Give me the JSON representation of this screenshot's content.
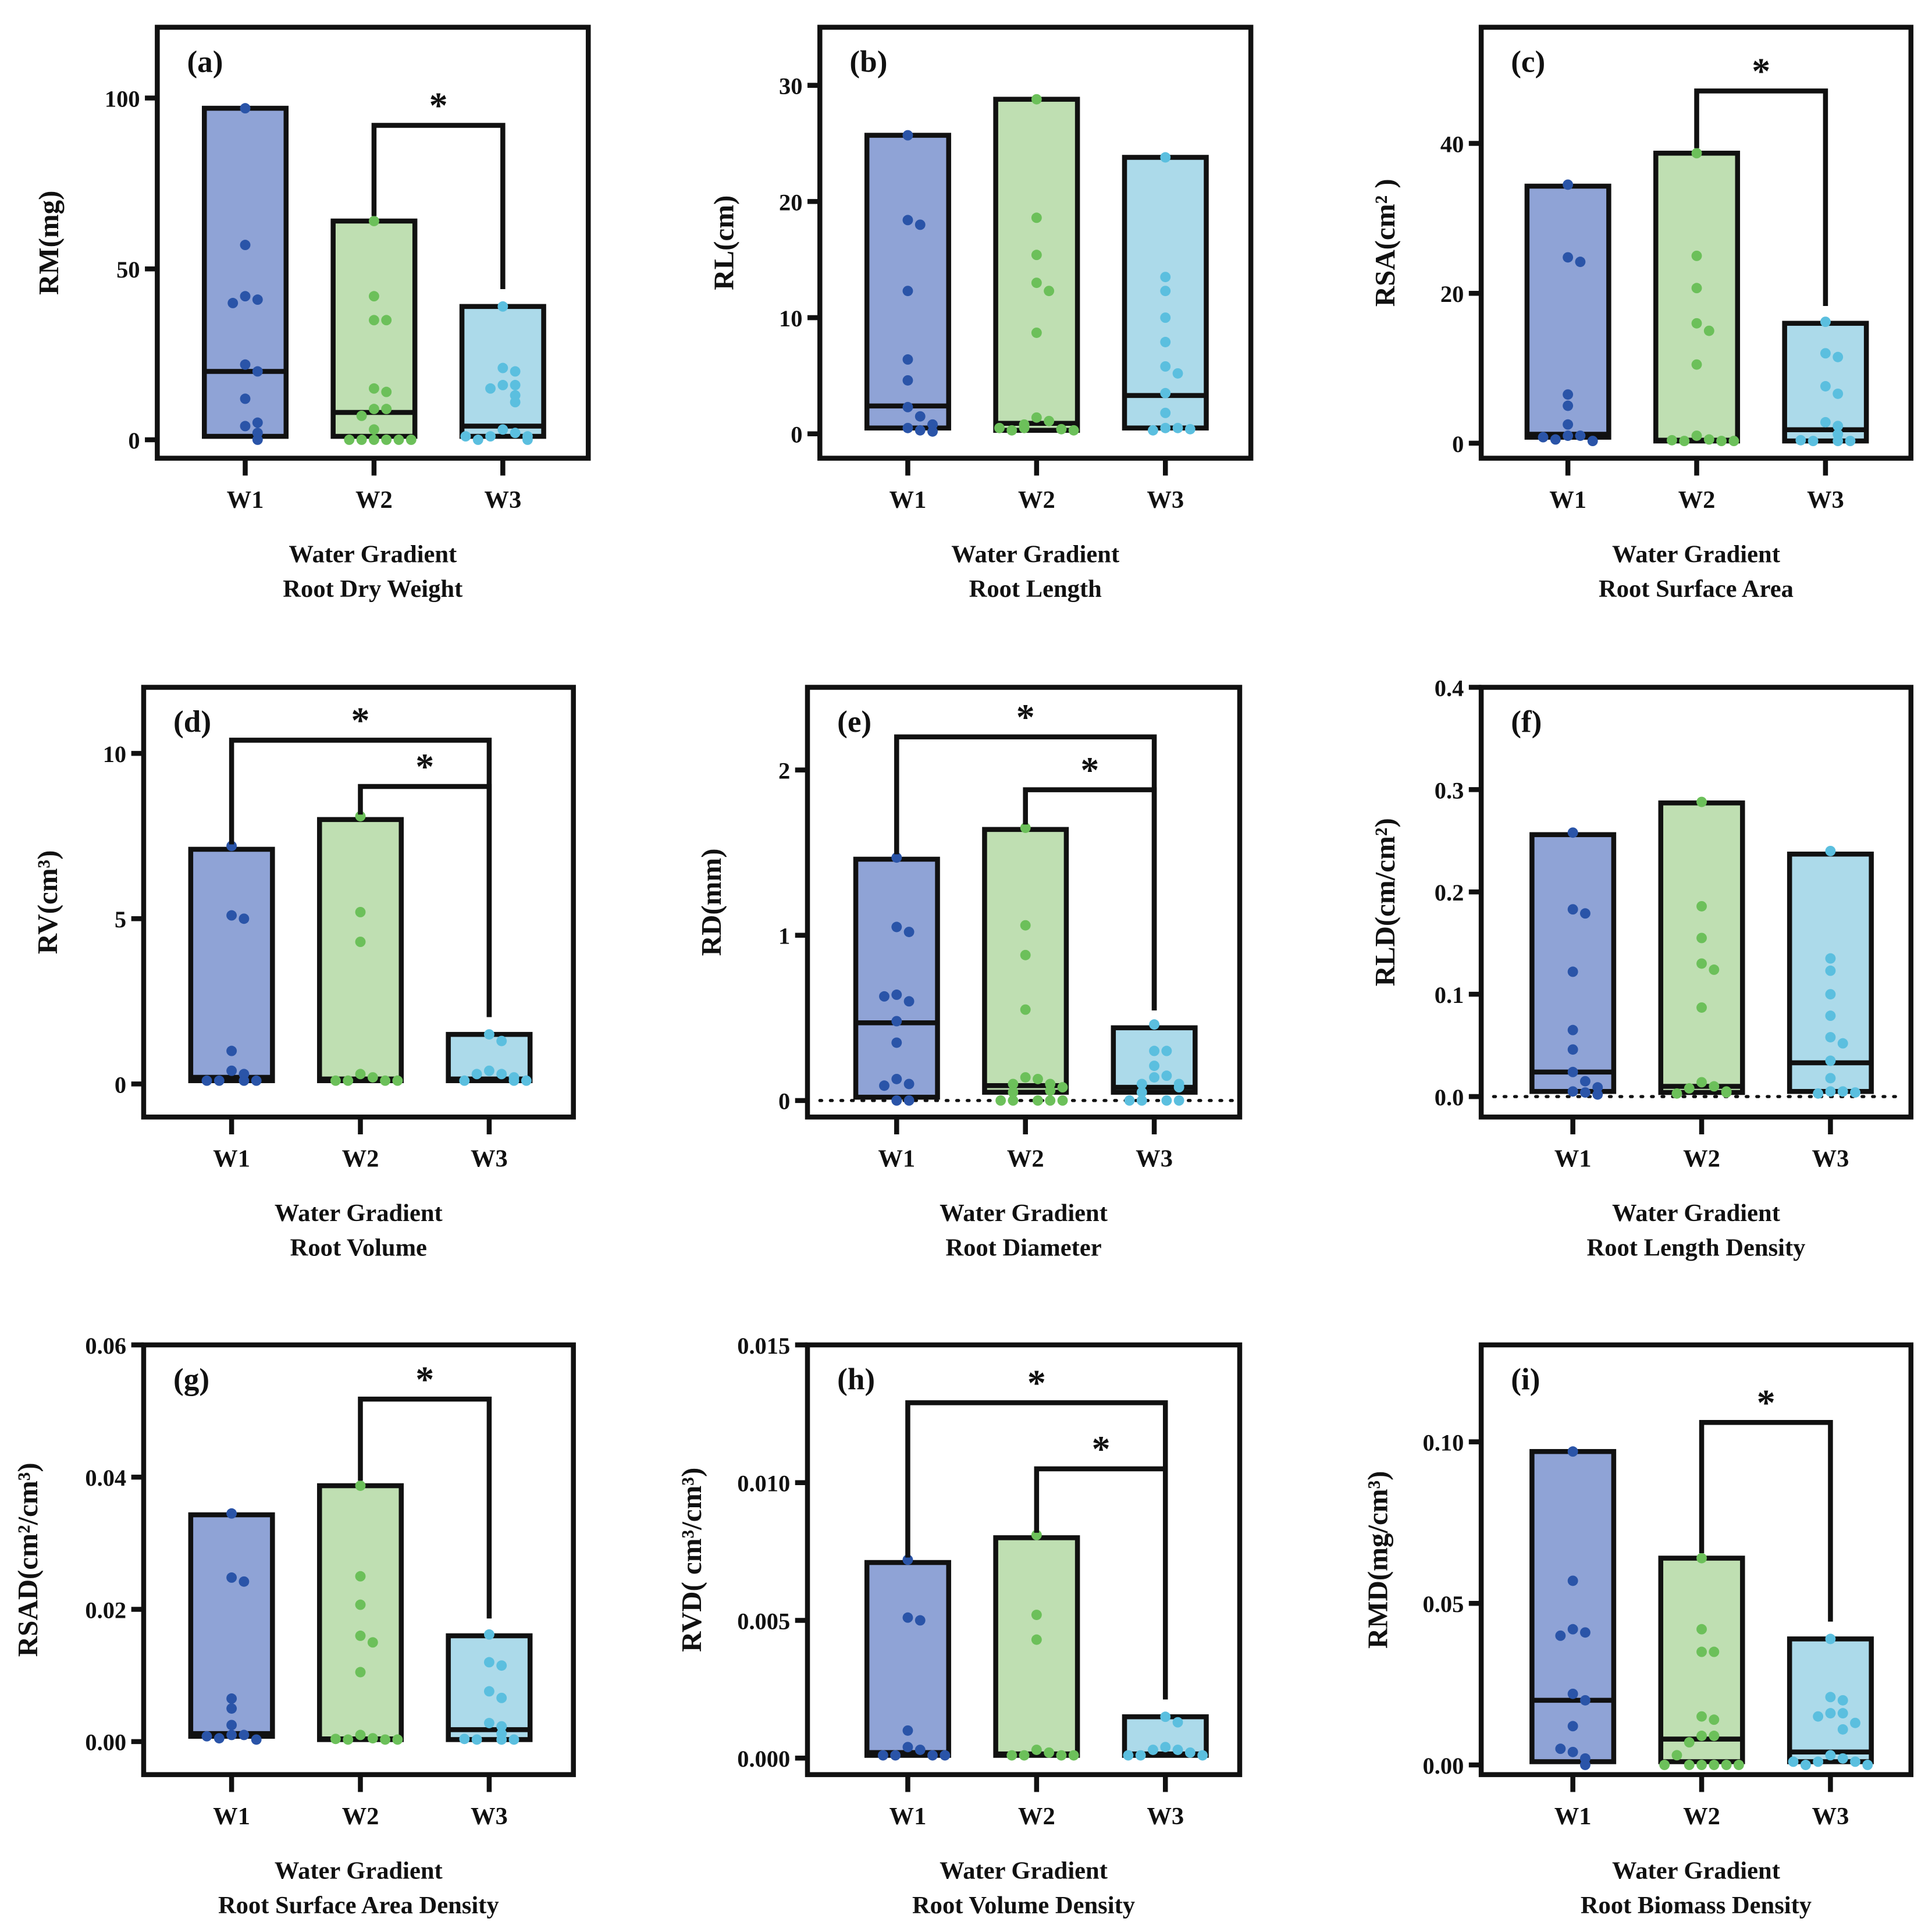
{
  "colors": {
    "W1": {
      "fill": "#8fa3d6",
      "dot": "#2a54a8"
    },
    "W2": {
      "fill": "#bfdfb2",
      "dot": "#6cc05a"
    },
    "W3": {
      "fill": "#acdaea",
      "dot": "#5bbfdf"
    },
    "frame": "#111111"
  },
  "chart_data": [
    {
      "type": "bar",
      "panel": "(a)",
      "ylabel": "RM(mg)",
      "xlabel": [
        "Water Gradient",
        "Root Dry Weight"
      ],
      "categories": [
        "W1",
        "W2",
        "W3"
      ],
      "ylim": [
        -5.4,
        120.7
      ],
      "ticks": [
        0,
        50,
        100
      ],
      "tick_labels": [
        "0",
        "50",
        "100"
      ],
      "zero_line": false,
      "boxes": [
        {
          "min": 1,
          "median": 20,
          "max": 97
        },
        {
          "min": 1,
          "median": 8,
          "max": 64
        },
        {
          "min": 1,
          "median": 4,
          "max": 39
        }
      ],
      "points": [
        [
          97,
          57,
          42,
          41,
          40,
          22,
          20,
          12,
          4,
          2,
          0,
          5
        ],
        [
          64,
          42,
          35,
          35,
          15,
          14,
          9,
          9,
          7,
          0,
          0,
          0,
          0,
          3,
          0,
          0
        ],
        [
          39,
          21,
          20,
          16,
          16,
          15,
          13,
          11,
          3,
          2,
          1,
          1,
          0,
          0,
          1
        ]
      ],
      "significance": [
        {
          "from": 1,
          "to": 2,
          "level": 92,
          "label": "*"
        }
      ]
    },
    {
      "type": "bar",
      "panel": "(b)",
      "ylabel": "RL(cm)",
      "xlabel": [
        "Water Gradient",
        "Root Length"
      ],
      "categories": [
        "W1",
        "W2",
        "W3"
      ],
      "ylim": [
        -2.1,
        35
      ],
      "ticks": [
        0,
        10,
        20,
        30
      ],
      "tick_labels": [
        "0",
        "10",
        "20",
        "30"
      ],
      "zero_line": false,
      "boxes": [
        {
          "min": 0.5,
          "median": 2.4,
          "max": 25.7
        },
        {
          "min": 0.3,
          "median": 0.9,
          "max": 28.8
        },
        {
          "min": 0.5,
          "median": 3.3,
          "max": 23.8
        }
      ],
      "points": [
        [
          25.7,
          18.4,
          18,
          12.3,
          6.4,
          4.6,
          2.3,
          1.5,
          0.5,
          0.3,
          0.8,
          0.2
        ],
        [
          28.8,
          18.6,
          15.4,
          13,
          12.3,
          8.7,
          1.4,
          1.1,
          0.8,
          0.5,
          0.4,
          0.3,
          0.3,
          0.5
        ],
        [
          23.8,
          13.5,
          12.3,
          10,
          7.9,
          5.8,
          5.2,
          3.5,
          1.8,
          0.5,
          0.5,
          0.3,
          0.4
        ]
      ],
      "significance": []
    },
    {
      "type": "bar",
      "panel": "(c)",
      "ylabel": "RSA(cm² )",
      "xlabel": [
        "Water Gradient",
        "Root Surface Area"
      ],
      "categories": [
        "W1",
        "W2",
        "W3"
      ],
      "ylim": [
        -2,
        55.5
      ],
      "ticks": [
        0,
        20,
        40
      ],
      "tick_labels": [
        "0",
        "20",
        "40"
      ],
      "zero_line": false,
      "boxes": [
        {
          "min": 0.8,
          "median": 1.2,
          "max": 34.3
        },
        {
          "min": 0.3,
          "median": 0.4,
          "max": 38.7
        },
        {
          "min": 0.3,
          "median": 1.8,
          "max": 16
        }
      ],
      "points": [
        [
          34.5,
          24.8,
          24.2,
          6.5,
          5,
          2.5,
          1,
          1,
          0.5,
          0.3,
          0.8
        ],
        [
          38.7,
          25,
          20.7,
          16,
          15,
          10.5,
          1,
          0.5,
          0.3,
          0.3,
          0.4,
          0.3
        ],
        [
          16.2,
          12,
          11.5,
          7.6,
          6.6,
          2.8,
          2.3,
          1.2,
          0.3,
          0.3,
          0.3,
          0.4
        ]
      ],
      "significance": [
        {
          "from": 1,
          "to": 2,
          "level": 47,
          "label": "*"
        }
      ]
    },
    {
      "type": "bar",
      "panel": "(d)",
      "ylabel": "RV(cm³)",
      "xlabel": [
        "Water Gradient",
        "Root Volume"
      ],
      "categories": [
        "W1",
        "W2",
        "W3"
      ],
      "ylim": [
        -1,
        12
      ],
      "ticks": [
        0,
        5,
        10
      ],
      "tick_labels": [
        "0",
        "5",
        "10"
      ],
      "zero_line": false,
      "boxes": [
        {
          "min": 0.1,
          "median": 0.2,
          "max": 7.1
        },
        {
          "min": 0.1,
          "median": 0.15,
          "max": 8
        },
        {
          "min": 0.1,
          "median": 0.15,
          "max": 1.5
        }
      ],
      "points": [
        [
          7.2,
          5.1,
          5,
          1,
          0.4,
          0.3,
          0.1,
          0.1,
          0.1,
          0.1
        ],
        [
          8.1,
          5.2,
          4.3,
          0.3,
          0.2,
          0.1,
          0.1,
          0.1,
          0.1
        ],
        [
          1.5,
          1.3,
          0.4,
          0.3,
          0.3,
          0.2,
          0.1,
          0.1,
          0.1
        ]
      ],
      "significance": [
        {
          "from": 0,
          "to": 2,
          "level": 10.4,
          "label": "*"
        },
        {
          "from": 1,
          "to": 2,
          "level": 9.0,
          "label": "*"
        }
      ]
    },
    {
      "type": "bar",
      "panel": "(e)",
      "ylabel": "RD(mm)",
      "xlabel": [
        "Water Gradient",
        "Root Diameter"
      ],
      "categories": [
        "W1",
        "W2",
        "W3"
      ],
      "ylim": [
        -0.1,
        2.5
      ],
      "ticks": [
        0,
        1,
        2
      ],
      "tick_labels": [
        "0",
        "1",
        "2"
      ],
      "zero_line": true,
      "boxes": [
        {
          "min": 0.02,
          "median": 0.47,
          "max": 1.46
        },
        {
          "min": 0.05,
          "median": 0.09,
          "max": 1.64
        },
        {
          "min": 0.05,
          "median": 0.08,
          "max": 0.44
        }
      ],
      "points": [
        [
          1.47,
          1.05,
          1.02,
          0.64,
          0.6,
          0.63,
          0.48,
          0.35,
          0.13,
          0.1,
          0.09,
          0,
          0
        ],
        [
          1.65,
          1.06,
          0.88,
          0.55,
          0.14,
          0.13,
          0.1,
          0.1,
          0.05,
          0.06,
          0.08,
          0,
          0,
          0,
          0,
          0
        ],
        [
          0.46,
          0.3,
          0.3,
          0.21,
          0.14,
          0.15,
          0.1,
          0.1,
          0.05,
          0.08,
          0,
          0,
          0,
          0
        ]
      ],
      "significance": [
        {
          "from": 0,
          "to": 2,
          "level": 2.2,
          "label": "*"
        },
        {
          "from": 1,
          "to": 2,
          "level": 1.88,
          "label": "*"
        }
      ]
    },
    {
      "type": "bar",
      "panel": "(f)",
      "ylabel": "RLD(cm/cm²)",
      "xlabel": [
        "Water Gradient",
        "Root Length Density"
      ],
      "categories": [
        "W1",
        "W2",
        "W3"
      ],
      "ylim": [
        -0.02,
        0.4
      ],
      "ticks": [
        0,
        0.1,
        0.2,
        0.3,
        0.4
      ],
      "tick_labels": [
        "0.0",
        "0.1",
        "0.2",
        "0.3",
        "0.4"
      ],
      "zero_line": true,
      "boxes": [
        {
          "min": 0.005,
          "median": 0.024,
          "max": 0.256
        },
        {
          "min": 0.004,
          "median": 0.01,
          "max": 0.287
        },
        {
          "min": 0.005,
          "median": 0.033,
          "max": 0.237
        }
      ],
      "points": [
        [
          0.258,
          0.183,
          0.179,
          0.122,
          0.065,
          0.046,
          0.024,
          0.015,
          0.005,
          0.004,
          0.009,
          0.002
        ],
        [
          0.288,
          0.186,
          0.155,
          0.13,
          0.124,
          0.087,
          0.014,
          0.01,
          0.008,
          0.005,
          0.004,
          0.003
        ],
        [
          0.24,
          0.135,
          0.123,
          0.1,
          0.079,
          0.058,
          0.052,
          0.035,
          0.018,
          0.005,
          0.005,
          0.003,
          0.004
        ]
      ],
      "significance": []
    },
    {
      "type": "bar",
      "panel": "(g)",
      "ylabel": "RSAD(cm²/cm³)",
      "xlabel": [
        "Water Gradient",
        "Root Surface Area Density"
      ],
      "categories": [
        "W1",
        "W2",
        "W3"
      ],
      "ylim": [
        -0.005,
        0.06
      ],
      "ticks": [
        0,
        0.02,
        0.04,
        0.06
      ],
      "tick_labels": [
        "0.00",
        "0.02",
        "0.04",
        "0.06"
      ],
      "zero_line": false,
      "boxes": [
        {
          "min": 0.0008,
          "median": 0.0012,
          "max": 0.0343
        },
        {
          "min": 0.0003,
          "median": 0.0004,
          "max": 0.0387
        },
        {
          "min": 0.0003,
          "median": 0.0018,
          "max": 0.016
        }
      ],
      "points": [
        [
          0.0345,
          0.0248,
          0.0242,
          0.0065,
          0.005,
          0.0025,
          0.001,
          0.001,
          0.0005,
          0.0003,
          0.0008
        ],
        [
          0.0387,
          0.025,
          0.0207,
          0.016,
          0.015,
          0.0105,
          0.001,
          0.0005,
          0.0003,
          0.0003,
          0.0004,
          0.0003
        ],
        [
          0.0162,
          0.012,
          0.0115,
          0.0076,
          0.0066,
          0.0028,
          0.0023,
          0.0012,
          0.0003,
          0.0003,
          0.0003,
          0.0004
        ]
      ],
      "significance": [
        {
          "from": 1,
          "to": 2,
          "level": 0.0518,
          "label": "*"
        }
      ]
    },
    {
      "type": "bar",
      "panel": "(h)",
      "ylabel": "RVD( cm³/cm³)",
      "xlabel": [
        "Water Gradient",
        "Root Volume Density"
      ],
      "categories": [
        "W1",
        "W2",
        "W3"
      ],
      "ylim": [
        -0.0006,
        0.015
      ],
      "ticks": [
        0,
        0.005,
        0.01,
        0.015
      ],
      "tick_labels": [
        "0.000",
        "0.005",
        "0.010",
        "0.015"
      ],
      "zero_line": false,
      "boxes": [
        {
          "min": 0.0001,
          "median": 0.0002,
          "max": 0.0071
        },
        {
          "min": 0.0001,
          "median": 0.00015,
          "max": 0.008
        },
        {
          "min": 0.0001,
          "median": 0.00015,
          "max": 0.0015
        }
      ],
      "points": [
        [
          0.0072,
          0.0051,
          0.005,
          0.001,
          0.0004,
          0.0003,
          0.0001,
          0.0001,
          0.0001,
          0.0001
        ],
        [
          0.0081,
          0.0052,
          0.0043,
          0.0003,
          0.0002,
          0.0001,
          0.0001,
          0.0001,
          0.0001
        ],
        [
          0.0015,
          0.0013,
          0.0004,
          0.0003,
          0.0003,
          0.0002,
          0.0001,
          0.0001,
          0.0001
        ]
      ],
      "significance": [
        {
          "from": 0,
          "to": 2,
          "level": 0.0129,
          "label": "*"
        },
        {
          "from": 1,
          "to": 2,
          "level": 0.0105,
          "label": "*"
        }
      ]
    },
    {
      "type": "bar",
      "panel": "(i)",
      "ylabel": "RMD(mg/cm³)",
      "xlabel": [
        "Water Gradient",
        "Root Biomass Density"
      ],
      "categories": [
        "W1",
        "W2",
        "W3"
      ],
      "ylim": [
        -0.003,
        0.13
      ],
      "ticks": [
        0,
        0.05,
        0.1
      ],
      "tick_labels": [
        "0.00",
        "0.05",
        "0.10"
      ],
      "zero_line": false,
      "boxes": [
        {
          "min": 0.001,
          "median": 0.02,
          "max": 0.097
        },
        {
          "min": 0.001,
          "median": 0.008,
          "max": 0.064
        },
        {
          "min": 0.001,
          "median": 0.004,
          "max": 0.039
        }
      ],
      "points": [
        [
          0.097,
          0.057,
          0.042,
          0.041,
          0.04,
          0.022,
          0.02,
          0.012,
          0.004,
          0.002,
          0,
          0.005
        ],
        [
          0.064,
          0.042,
          0.035,
          0.035,
          0.015,
          0.014,
          0.009,
          0.009,
          0.007,
          0,
          0,
          0,
          0,
          0.003,
          0,
          0
        ],
        [
          0.039,
          0.021,
          0.02,
          0.016,
          0.016,
          0.015,
          0.013,
          0.011,
          0.003,
          0.002,
          0.001,
          0.001,
          0,
          0,
          0.001
        ]
      ],
      "significance": [
        {
          "from": 1,
          "to": 2,
          "level": 0.106,
          "label": "*"
        }
      ]
    }
  ]
}
